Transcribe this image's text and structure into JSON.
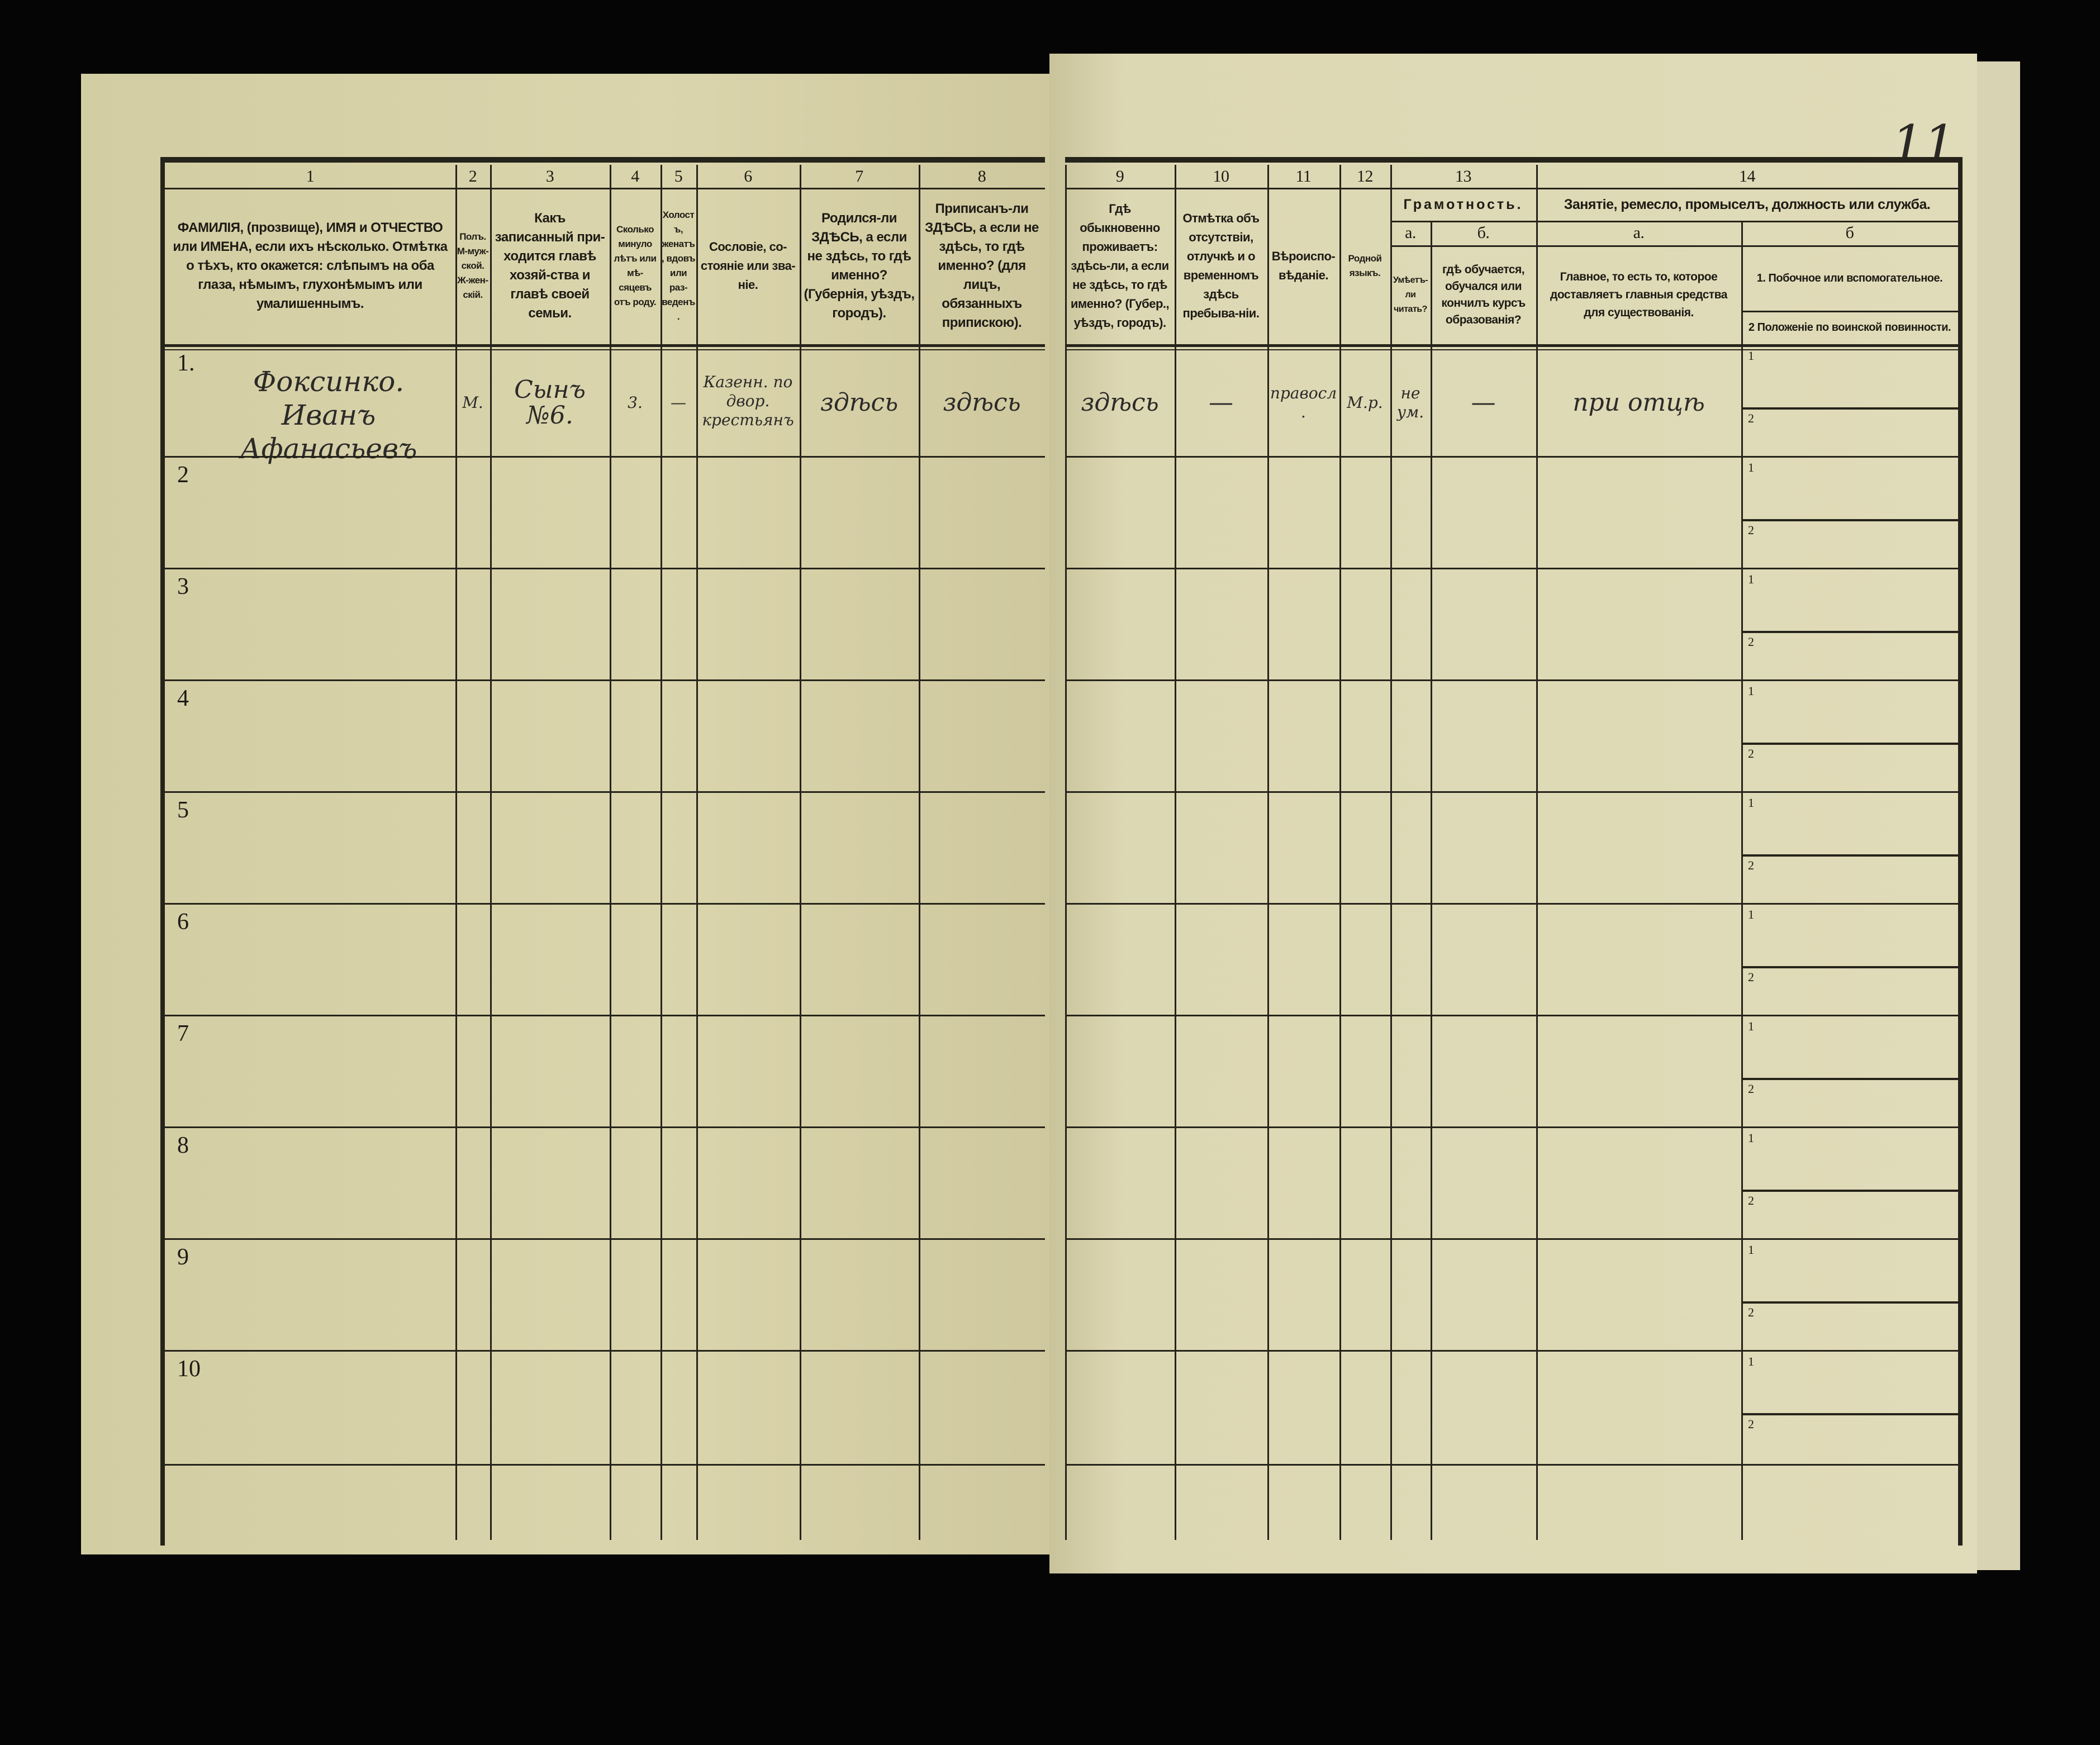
{
  "page_number": "11",
  "header": {
    "columns": [
      {
        "num": "1",
        "text": "ФАМИЛІЯ, (прозвище), ИМЯ и ОТЧЕСТВО или ИМЕНА, если ихъ нѣсколько. Отмѣтка о тѣхъ, кто окажется: слѣпымъ на оба глаза, нѣмымъ, глухонѣмымъ или умалишеннымъ."
      },
      {
        "num": "2",
        "text": "Полъ. М-муж-ской. Ж-жен-скій."
      },
      {
        "num": "3",
        "text": "Какъ записанный при-ходится главѣ хозяй-ства и главѣ своей семьи."
      },
      {
        "num": "4",
        "text": "Сколько минуло лѣтъ или мѣ-сяцевъ отъ роду."
      },
      {
        "num": "5",
        "text": "Холостъ, женатъ, вдовъ или раз-веденъ."
      },
      {
        "num": "6",
        "text": "Сословіе, со-стояніе или зва-ніе."
      },
      {
        "num": "7",
        "text": "Родился-ли ЗДѢСЬ, а если не здѣсь, то гдѣ именно? (Губернія, уѣздъ, городъ)."
      },
      {
        "num": "8",
        "text": "Приписанъ-ли ЗДѢСЬ, а если не здѣсь, то гдѣ именно? (для лицъ, обязанныхъ припискою)."
      },
      {
        "num": "9",
        "text": "Гдѣ обыкновенно проживаетъ: здѣсь-ли, а если не здѣсь, то гдѣ именно? (Губер., уѣздъ, городъ)."
      },
      {
        "num": "10",
        "text": "Отмѣтка объ отсутствіи, отлучкѣ и о временномъ здѣсь пребыва-ніи."
      },
      {
        "num": "11",
        "text": "Вѣроиспо-вѣданіе."
      },
      {
        "num": "12",
        "text": "Родной языкъ."
      }
    ],
    "group13": {
      "num": "13",
      "title": "Грамотность.",
      "sub": [
        {
          "letter": "а.",
          "text": "Умѣетъ-ли читать?"
        },
        {
          "letter": "б.",
          "text": "гдѣ обучается, обучался или кончилъ курсъ образованія?"
        }
      ]
    },
    "group14": {
      "num": "14",
      "title": "Занятіе, ремесло, промыселъ, должность или служба.",
      "sub": [
        {
          "letter": "а.",
          "text": "Главное, то есть то, которое доставляетъ главныя средства для существованія."
        },
        {
          "letter": "б",
          "items": [
            "1. Побочное или вспомогательное.",
            "2 Положеніе по воинской повинности."
          ]
        }
      ]
    }
  },
  "sub_labels": [
    "1",
    "2"
  ],
  "rows": [
    {
      "number": "1.",
      "cells": [
        "Фоксинко. Иванъ Афанасьевъ",
        "М.",
        "Сынъ №6.",
        "3.",
        "—",
        "Казенн. по двор. крестьянъ",
        "здѣсь",
        "здѣсь",
        "здѣсь",
        "—",
        "правосл.",
        "М.р.",
        "не ум.",
        "—",
        "при отцѣ",
        ""
      ]
    },
    {
      "number": "2",
      "cells": []
    },
    {
      "number": "3",
      "cells": []
    },
    {
      "number": "4",
      "cells": []
    },
    {
      "number": "5",
      "cells": []
    },
    {
      "number": "6",
      "cells": []
    },
    {
      "number": "7",
      "cells": []
    },
    {
      "number": "8",
      "cells": []
    },
    {
      "number": "9",
      "cells": []
    },
    {
      "number": "10",
      "cells": []
    }
  ],
  "colors": {
    "paper": "#dbd5ad",
    "ink": "#25231a",
    "background": "#000000"
  }
}
